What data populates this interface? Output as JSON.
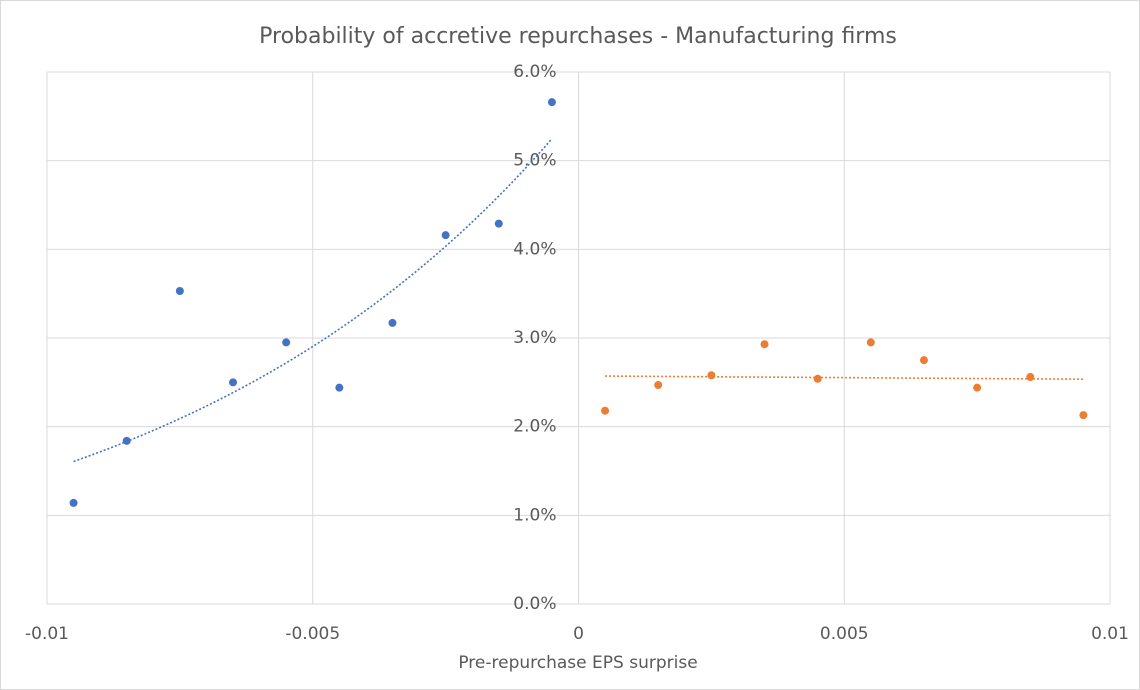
{
  "chart_data": {
    "type": "scatter",
    "title": "Probability of accretive repurchases - Manufacturing firms",
    "x_label": "Pre-repurchase EPS surprise",
    "series": [
      {
        "color": "#4472c4",
        "trendline": "exponential",
        "x": [
          -0.0095,
          -0.0085,
          -0.0075,
          -0.0065,
          -0.0055,
          -0.0045,
          -0.0035,
          -0.0025,
          -0.0015,
          -0.0005
        ],
        "values": [
          1.14,
          1.84,
          3.53,
          2.5,
          2.95,
          2.44,
          3.17,
          4.16,
          4.29,
          5.66
        ]
      },
      {
        "color": "#ed7d31",
        "trendline": "linear",
        "x": [
          0.0005,
          0.0015,
          0.0025,
          0.0035,
          0.0045,
          0.0055,
          0.0065,
          0.0075,
          0.0085,
          0.0095
        ],
        "values": [
          2.18,
          2.47,
          2.58,
          2.93,
          2.54,
          2.95,
          2.75,
          2.44,
          2.56,
          2.13
        ]
      }
    ],
    "xlim": [
      -0.01,
      0.01
    ],
    "xticks": [
      -0.01,
      -0.005,
      0,
      0.005,
      0.01
    ],
    "ylim": [
      0,
      6
    ],
    "yticks": [
      {
        "value": 0,
        "label": "0.0%"
      },
      {
        "value": 1,
        "label": "1.0%"
      },
      {
        "value": 2,
        "label": "2.0%"
      },
      {
        "value": 3,
        "label": "3.0%"
      },
      {
        "value": 4,
        "label": "4.0%"
      },
      {
        "value": 5,
        "label": "5.0%"
      },
      {
        "value": 6,
        "label": "6.0%"
      }
    ],
    "grid": true
  }
}
